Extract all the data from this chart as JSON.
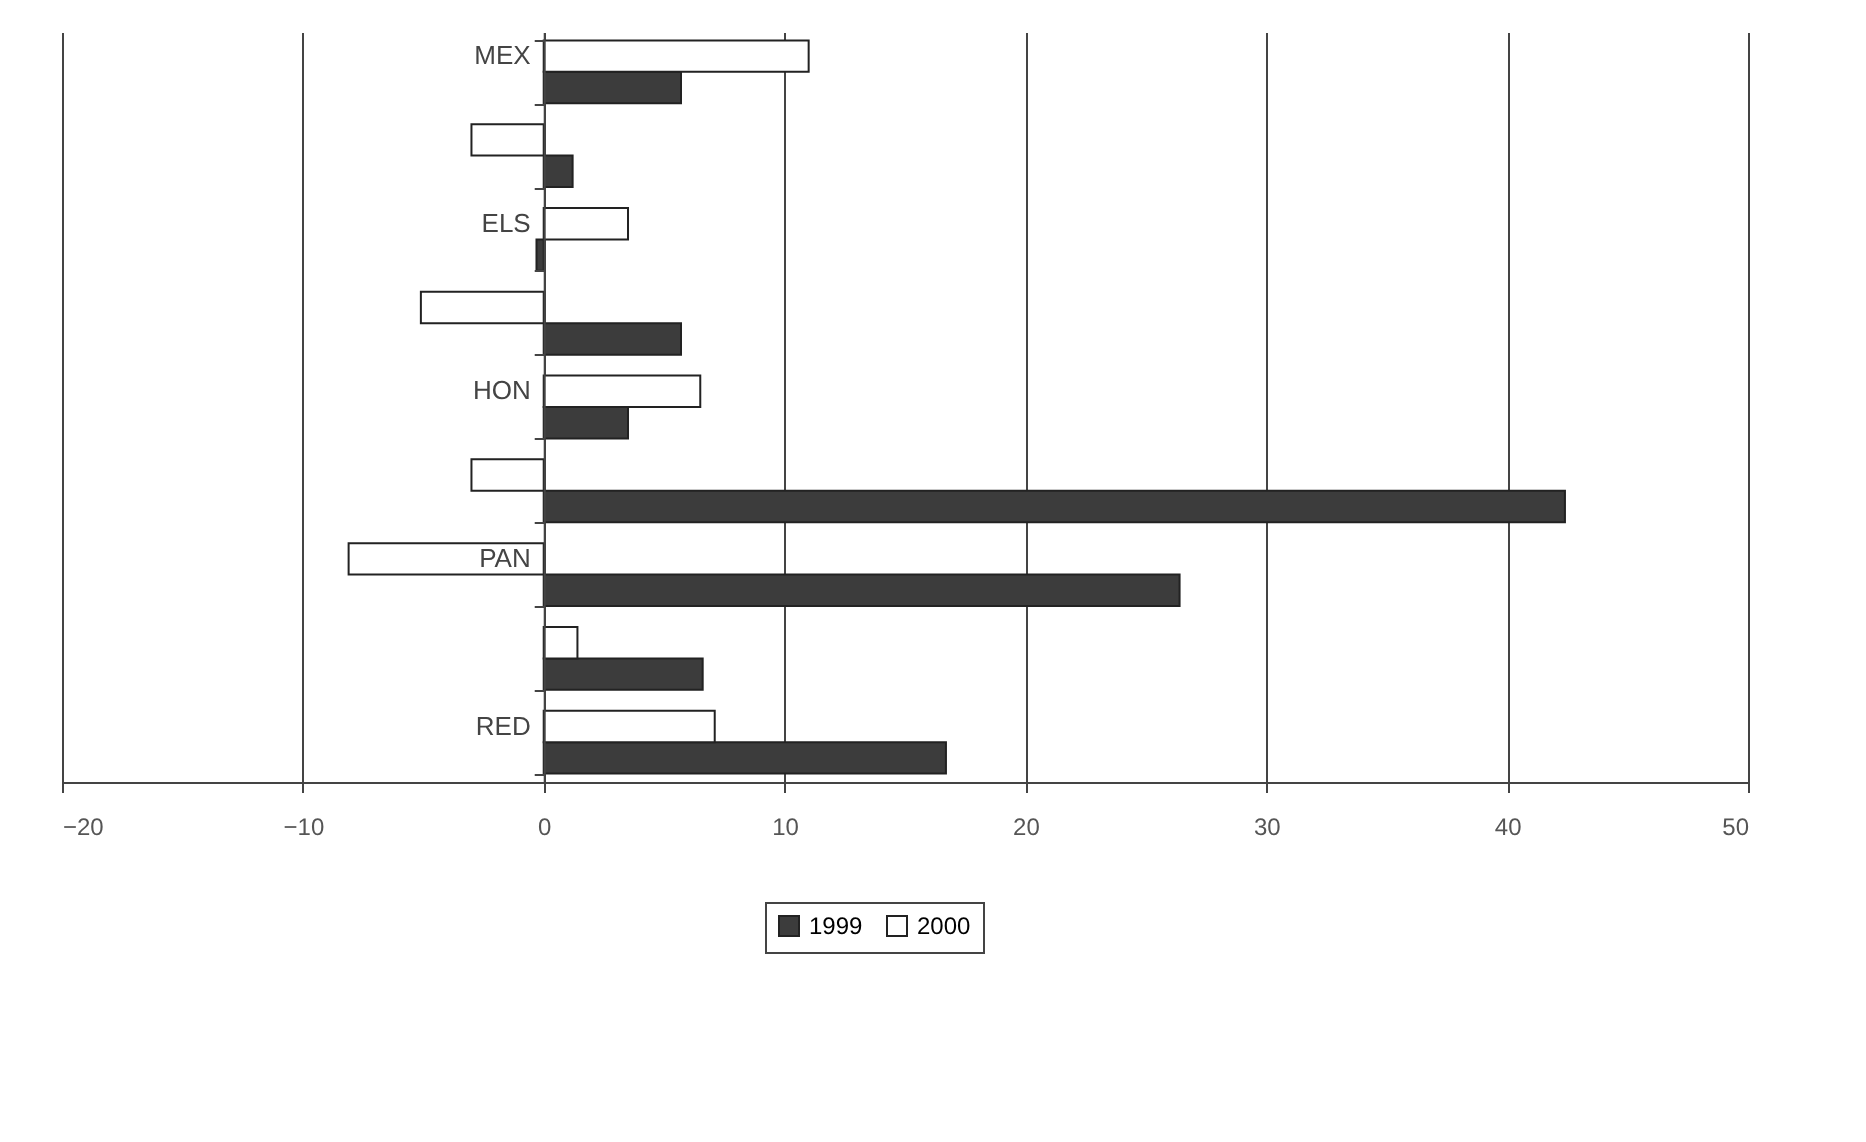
{
  "chart_data": {
    "type": "bar",
    "orientation": "horizontal",
    "categories": [
      "MEX",
      null,
      "ELS",
      null,
      "HON",
      null,
      "PAN",
      null,
      "RED"
    ],
    "series": [
      {
        "name": "1999",
        "color": "#3c3c3c",
        "values": [
          5.7,
          1.2,
          -0.3,
          5.7,
          3.5,
          42.4,
          26.4,
          6.6,
          16.7
        ]
      },
      {
        "name": "2000",
        "color": "#ffffff",
        "values": [
          11.0,
          -3.0,
          3.5,
          -5.1,
          6.5,
          -3.0,
          -8.1,
          1.4,
          7.1
        ]
      }
    ],
    "xlim": [
      -20,
      50
    ],
    "xticks": [
      -20,
      -10,
      0,
      10,
      20,
      30,
      40,
      50
    ],
    "grid": "x",
    "legend": "bottom"
  }
}
